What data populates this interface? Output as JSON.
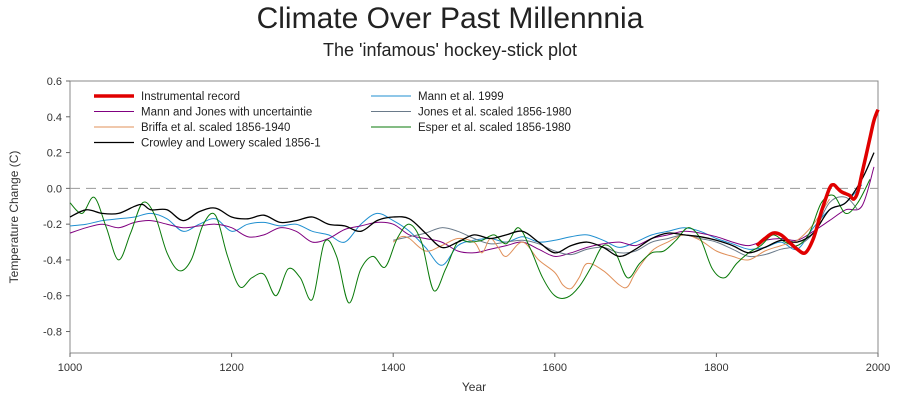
{
  "chart_data": {
    "type": "line",
    "title": "Climate Over Past Millennnia",
    "subtitle": "The 'infamous' hockey-stick plot",
    "xlabel": "Year",
    "ylabel": "Temperature Change (C)",
    "xlim": [
      1000,
      2000
    ],
    "ylim": [
      -0.92,
      0.6
    ],
    "xticks": [
      1000,
      1200,
      1400,
      1600,
      1800,
      2000
    ],
    "yticks": [
      0.6,
      0.4,
      0.2,
      0.0,
      -0.2,
      -0.4,
      -0.6,
      -0.8
    ],
    "reference_line": {
      "y": 0.0,
      "style": "dashed",
      "color": "#999999"
    },
    "grid": false,
    "legend": {
      "position": "top-left",
      "columns": 2
    },
    "series": [
      {
        "name": "Instrumental record",
        "color": "#e00000",
        "width": 3.5,
        "x": [
          1850,
          1860,
          1870,
          1880,
          1890,
          1900,
          1910,
          1920,
          1930,
          1940,
          1945,
          1950,
          1955,
          1960,
          1965,
          1970,
          1975,
          1980,
          1985,
          1990,
          1995,
          2000
        ],
        "y": [
          -0.32,
          -0.28,
          -0.25,
          -0.26,
          -0.3,
          -0.34,
          -0.36,
          -0.28,
          -0.13,
          0.0,
          0.02,
          0.0,
          -0.02,
          -0.03,
          -0.04,
          -0.06,
          -0.02,
          0.08,
          0.18,
          0.28,
          0.38,
          0.44
        ]
      },
      {
        "name": "Mann et al. 1999",
        "color": "#1f8fd0",
        "width": 1,
        "x": [
          1000,
          1020,
          1040,
          1060,
          1080,
          1100,
          1120,
          1140,
          1160,
          1180,
          1200,
          1220,
          1240,
          1260,
          1280,
          1300,
          1320,
          1340,
          1360,
          1380,
          1400,
          1420,
          1440,
          1460,
          1480,
          1500,
          1520,
          1540,
          1560,
          1580,
          1600,
          1620,
          1640,
          1660,
          1680,
          1700,
          1720,
          1740,
          1760,
          1780,
          1800,
          1820,
          1840,
          1860,
          1880,
          1900,
          1920,
          1940,
          1960,
          1980
        ],
        "y": [
          -0.21,
          -0.2,
          -0.18,
          -0.17,
          -0.16,
          -0.14,
          -0.17,
          -0.24,
          -0.2,
          -0.17,
          -0.24,
          -0.2,
          -0.19,
          -0.21,
          -0.2,
          -0.24,
          -0.26,
          -0.3,
          -0.2,
          -0.14,
          -0.18,
          -0.24,
          -0.33,
          -0.43,
          -0.32,
          -0.29,
          -0.28,
          -0.3,
          -0.27,
          -0.3,
          -0.29,
          -0.27,
          -0.26,
          -0.29,
          -0.33,
          -0.3,
          -0.26,
          -0.24,
          -0.22,
          -0.24,
          -0.28,
          -0.31,
          -0.34,
          -0.33,
          -0.3,
          -0.34,
          -0.22,
          -0.12,
          -0.08,
          0.02
        ]
      },
      {
        "name": "Mann and Jones with uncertaintie",
        "color": "#800080",
        "width": 1,
        "x": [
          1000,
          1020,
          1040,
          1060,
          1080,
          1100,
          1120,
          1140,
          1160,
          1180,
          1200,
          1220,
          1240,
          1260,
          1280,
          1300,
          1320,
          1340,
          1360,
          1380,
          1400,
          1420,
          1440,
          1460,
          1480,
          1500,
          1520,
          1540,
          1560,
          1580,
          1600,
          1620,
          1640,
          1660,
          1680,
          1700,
          1720,
          1740,
          1760,
          1780,
          1800,
          1820,
          1840,
          1860,
          1880,
          1900,
          1920,
          1940,
          1960,
          1980,
          1995
        ],
        "y": [
          -0.25,
          -0.22,
          -0.2,
          -0.22,
          -0.19,
          -0.18,
          -0.2,
          -0.22,
          -0.21,
          -0.2,
          -0.22,
          -0.27,
          -0.26,
          -0.22,
          -0.24,
          -0.3,
          -0.28,
          -0.23,
          -0.21,
          -0.19,
          -0.2,
          -0.26,
          -0.28,
          -0.3,
          -0.35,
          -0.36,
          -0.34,
          -0.32,
          -0.3,
          -0.34,
          -0.38,
          -0.36,
          -0.33,
          -0.31,
          -0.3,
          -0.32,
          -0.28,
          -0.26,
          -0.24,
          -0.25,
          -0.27,
          -0.3,
          -0.32,
          -0.29,
          -0.28,
          -0.29,
          -0.24,
          -0.18,
          -0.12,
          -0.1,
          0.12
        ]
      },
      {
        "name": "Jones et al. scaled 1856-1980",
        "color": "#6a7a8a",
        "width": 1,
        "x": [
          1400,
          1420,
          1440,
          1460,
          1480,
          1500,
          1520,
          1540,
          1560,
          1580,
          1600,
          1620,
          1640,
          1660,
          1680,
          1700,
          1720,
          1740,
          1760,
          1780,
          1800,
          1820,
          1840,
          1860,
          1880,
          1900,
          1920,
          1940,
          1960,
          1975
        ],
        "y": [
          -0.29,
          -0.27,
          -0.25,
          -0.22,
          -0.24,
          -0.28,
          -0.31,
          -0.3,
          -0.29,
          -0.31,
          -0.35,
          -0.37,
          -0.34,
          -0.33,
          -0.36,
          -0.35,
          -0.3,
          -0.28,
          -0.26,
          -0.28,
          -0.3,
          -0.34,
          -0.38,
          -0.37,
          -0.34,
          -0.32,
          -0.25,
          -0.08,
          -0.05,
          -0.12
        ]
      },
      {
        "name": "Briffa et al. scaled 1856-1940",
        "color": "#e0905a",
        "width": 1,
        "x": [
          1400,
          1410,
          1420,
          1440,
          1460,
          1480,
          1500,
          1510,
          1520,
          1530,
          1540,
          1560,
          1580,
          1600,
          1610,
          1620,
          1630,
          1640,
          1660,
          1680,
          1690,
          1700,
          1720,
          1740,
          1760,
          1780,
          1800,
          1820,
          1840,
          1860,
          1880,
          1900,
          1920,
          1940
        ],
        "y": [
          -0.3,
          -0.27,
          -0.28,
          -0.35,
          -0.32,
          -0.28,
          -0.3,
          -0.36,
          -0.28,
          -0.33,
          -0.38,
          -0.3,
          -0.4,
          -0.47,
          -0.54,
          -0.56,
          -0.5,
          -0.42,
          -0.46,
          -0.54,
          -0.55,
          -0.47,
          -0.35,
          -0.3,
          -0.26,
          -0.29,
          -0.35,
          -0.38,
          -0.4,
          -0.35,
          -0.32,
          -0.29,
          -0.2,
          -0.06
        ]
      },
      {
        "name": "Esper et al. scaled 1856-1980",
        "color": "#0a7a0a",
        "width": 1,
        "x": [
          1000,
          1015,
          1030,
          1045,
          1060,
          1075,
          1090,
          1105,
          1120,
          1135,
          1150,
          1165,
          1180,
          1195,
          1210,
          1225,
          1240,
          1255,
          1270,
          1285,
          1300,
          1315,
          1330,
          1345,
          1360,
          1375,
          1390,
          1405,
          1420,
          1435,
          1450,
          1465,
          1480,
          1495,
          1510,
          1525,
          1540,
          1555,
          1570,
          1585,
          1600,
          1615,
          1630,
          1645,
          1660,
          1675,
          1690,
          1705,
          1720,
          1735,
          1750,
          1765,
          1780,
          1795,
          1810,
          1825,
          1840,
          1855,
          1870,
          1885,
          1900,
          1915,
          1930,
          1945,
          1960,
          1975,
          1990
        ],
        "y": [
          -0.08,
          -0.14,
          -0.05,
          -0.22,
          -0.4,
          -0.25,
          -0.08,
          -0.15,
          -0.36,
          -0.46,
          -0.4,
          -0.2,
          -0.15,
          -0.38,
          -0.55,
          -0.5,
          -0.48,
          -0.6,
          -0.45,
          -0.5,
          -0.62,
          -0.3,
          -0.38,
          -0.64,
          -0.45,
          -0.38,
          -0.44,
          -0.28,
          -0.2,
          -0.3,
          -0.57,
          -0.45,
          -0.3,
          -0.3,
          -0.29,
          -0.26,
          -0.31,
          -0.22,
          -0.34,
          -0.5,
          -0.6,
          -0.61,
          -0.55,
          -0.44,
          -0.32,
          -0.36,
          -0.5,
          -0.42,
          -0.36,
          -0.35,
          -0.29,
          -0.22,
          -0.28,
          -0.45,
          -0.5,
          -0.42,
          -0.36,
          -0.32,
          -0.26,
          -0.3,
          -0.32,
          -0.25,
          -0.08,
          -0.04,
          -0.14,
          -0.08,
          0.05
        ]
      },
      {
        "name": "Crowley and Lowery scaled 1856-1",
        "color": "#000000",
        "width": 1.3,
        "x": [
          1000,
          1020,
          1040,
          1060,
          1080,
          1090,
          1100,
          1120,
          1140,
          1160,
          1180,
          1200,
          1220,
          1240,
          1260,
          1280,
          1300,
          1320,
          1340,
          1360,
          1380,
          1400,
          1420,
          1440,
          1460,
          1480,
          1500,
          1520,
          1540,
          1560,
          1580,
          1600,
          1620,
          1640,
          1660,
          1680,
          1700,
          1720,
          1740,
          1760,
          1780,
          1800,
          1820,
          1840,
          1860,
          1880,
          1900,
          1920,
          1940,
          1960,
          1980,
          1995
        ],
        "y": [
          -0.16,
          -0.12,
          -0.14,
          -0.14,
          -0.1,
          -0.09,
          -0.12,
          -0.12,
          -0.18,
          -0.13,
          -0.11,
          -0.16,
          -0.17,
          -0.15,
          -0.19,
          -0.18,
          -0.16,
          -0.2,
          -0.21,
          -0.24,
          -0.18,
          -0.16,
          -0.17,
          -0.25,
          -0.33,
          -0.3,
          -0.26,
          -0.28,
          -0.26,
          -0.24,
          -0.3,
          -0.36,
          -0.32,
          -0.3,
          -0.33,
          -0.38,
          -0.34,
          -0.28,
          -0.25,
          -0.26,
          -0.27,
          -0.29,
          -0.32,
          -0.36,
          -0.33,
          -0.29,
          -0.3,
          -0.25,
          -0.12,
          -0.08,
          0.05,
          0.2
        ]
      }
    ]
  }
}
